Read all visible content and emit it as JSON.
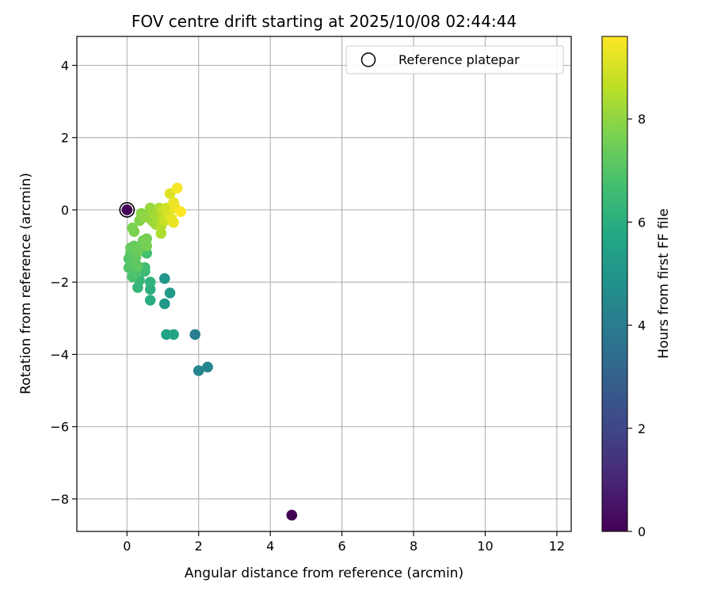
{
  "chart_data": {
    "type": "scatter",
    "title": "FOV centre drift starting at 2025/10/08 02:44:44",
    "xlabel": "Angular distance from reference (arcmin)",
    "ylabel": "Rotation from reference (arcmin)",
    "xlim": [
      -1.4,
      12.4
    ],
    "ylim": [
      -8.9,
      4.8
    ],
    "xticks": [
      0,
      2,
      4,
      6,
      8,
      10,
      12
    ],
    "yticks": [
      -8,
      -6,
      -4,
      -2,
      0,
      2,
      4
    ],
    "grid": true,
    "legend": {
      "position": "top-right",
      "entries": [
        "Reference platepar"
      ]
    },
    "reference_point": {
      "x": 0,
      "y": 0
    },
    "colorbar": {
      "label": "Hours from first FF file",
      "min": 0,
      "max": 9.6,
      "ticks": [
        0,
        2,
        4,
        6,
        8
      ],
      "colormap": "viridis"
    },
    "points": [
      {
        "x": 4.6,
        "y": -8.45,
        "h": 0.0
      },
      {
        "x": 0.0,
        "y": 0.0,
        "h": 0.05
      },
      {
        "x": 1.9,
        "y": -3.45,
        "h": 4.1
      },
      {
        "x": 2.0,
        "y": -4.45,
        "h": 4.3
      },
      {
        "x": 2.25,
        "y": -4.35,
        "h": 4.4
      },
      {
        "x": 1.05,
        "y": -1.9,
        "h": 5.0
      },
      {
        "x": 1.05,
        "y": -2.6,
        "h": 5.1
      },
      {
        "x": 1.2,
        "y": -2.3,
        "h": 5.2
      },
      {
        "x": 1.1,
        "y": -3.45,
        "h": 5.5
      },
      {
        "x": 1.3,
        "y": -3.45,
        "h": 5.6
      },
      {
        "x": 0.65,
        "y": -2.5,
        "h": 6.0
      },
      {
        "x": 0.65,
        "y": -2.2,
        "h": 6.1
      },
      {
        "x": 0.65,
        "y": -2.0,
        "h": 6.2
      },
      {
        "x": 0.3,
        "y": -2.15,
        "h": 6.3
      },
      {
        "x": 0.35,
        "y": -1.95,
        "h": 6.4
      },
      {
        "x": 0.5,
        "y": -1.7,
        "h": 6.5
      },
      {
        "x": 0.5,
        "y": -1.6,
        "h": 6.6
      },
      {
        "x": 0.55,
        "y": -1.2,
        "h": 6.7
      },
      {
        "x": 0.15,
        "y": -1.85,
        "h": 6.8
      },
      {
        "x": 0.25,
        "y": -1.7,
        "h": 6.9
      },
      {
        "x": 0.05,
        "y": -1.6,
        "h": 7.0
      },
      {
        "x": 0.05,
        "y": -1.35,
        "h": 7.0
      },
      {
        "x": 0.1,
        "y": -1.2,
        "h": 7.1
      },
      {
        "x": 0.15,
        "y": -1.45,
        "h": 7.1
      },
      {
        "x": 0.25,
        "y": -1.3,
        "h": 7.2
      },
      {
        "x": 0.3,
        "y": -1.55,
        "h": 7.2
      },
      {
        "x": 0.1,
        "y": -1.05,
        "h": 7.3
      },
      {
        "x": 0.2,
        "y": -1.0,
        "h": 7.3
      },
      {
        "x": 0.3,
        "y": -1.15,
        "h": 7.4
      },
      {
        "x": 0.4,
        "y": -1.0,
        "h": 7.4
      },
      {
        "x": 0.45,
        "y": -0.85,
        "h": 7.5
      },
      {
        "x": 0.55,
        "y": -0.8,
        "h": 7.6
      },
      {
        "x": 0.55,
        "y": -1.0,
        "h": 7.6
      },
      {
        "x": 0.2,
        "y": -0.6,
        "h": 7.7
      },
      {
        "x": 0.15,
        "y": -0.5,
        "h": 7.7
      },
      {
        "x": 0.35,
        "y": -0.3,
        "h": 7.8
      },
      {
        "x": 0.4,
        "y": -0.1,
        "h": 7.9
      },
      {
        "x": 0.5,
        "y": -0.2,
        "h": 8.0
      },
      {
        "x": 0.6,
        "y": -0.1,
        "h": 8.0
      },
      {
        "x": 0.65,
        "y": 0.05,
        "h": 8.1
      },
      {
        "x": 0.7,
        "y": -0.3,
        "h": 8.1
      },
      {
        "x": 0.75,
        "y": -0.1,
        "h": 8.2
      },
      {
        "x": 0.8,
        "y": -0.4,
        "h": 8.2
      },
      {
        "x": 0.85,
        "y": -0.2,
        "h": 8.3
      },
      {
        "x": 0.9,
        "y": 0.05,
        "h": 8.4
      },
      {
        "x": 0.95,
        "y": -0.65,
        "h": 8.4
      },
      {
        "x": 0.95,
        "y": -0.45,
        "h": 8.5
      },
      {
        "x": 1.0,
        "y": -0.2,
        "h": 8.6
      },
      {
        "x": 1.0,
        "y": 0.0,
        "h": 8.7
      },
      {
        "x": 1.05,
        "y": -0.3,
        "h": 8.8
      },
      {
        "x": 1.1,
        "y": 0.05,
        "h": 8.9
      },
      {
        "x": 1.15,
        "y": -0.1,
        "h": 9.0
      },
      {
        "x": 1.2,
        "y": 0.45,
        "h": 9.1
      },
      {
        "x": 1.25,
        "y": -0.25,
        "h": 9.2
      },
      {
        "x": 1.3,
        "y": 0.2,
        "h": 9.3
      },
      {
        "x": 1.3,
        "y": -0.35,
        "h": 9.3
      },
      {
        "x": 1.35,
        "y": 0.05,
        "h": 9.4
      },
      {
        "x": 1.4,
        "y": 0.6,
        "h": 9.5
      },
      {
        "x": 1.5,
        "y": -0.05,
        "h": 9.6
      }
    ]
  }
}
